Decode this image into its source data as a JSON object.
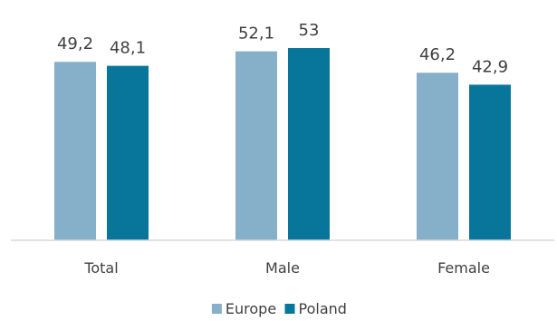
{
  "chart_data": {
    "type": "bar",
    "categories": [
      "Total",
      "Male",
      "Female"
    ],
    "series": [
      {
        "name": "Europe",
        "values": [
          49.2,
          52.1,
          46.2
        ],
        "labels": [
          "49,2",
          "52,1",
          "46,2"
        ],
        "color": "#86afc9"
      },
      {
        "name": "Poland",
        "values": [
          48.1,
          53.0,
          42.9
        ],
        "labels": [
          "48,1",
          "53",
          "42,9"
        ],
        "color": "#08769b"
      }
    ],
    "ylim": [
      0,
      60
    ],
    "grid": false,
    "legend_position": "bottom",
    "axis_color": "#d9d9d9"
  }
}
